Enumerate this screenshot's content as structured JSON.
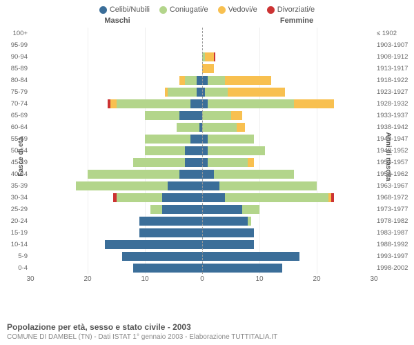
{
  "legend": [
    {
      "label": "Celibi/Nubili",
      "color": "#3b6e99"
    },
    {
      "label": "Coniugati/e",
      "color": "#b3d58b"
    },
    {
      "label": "Vedovi/e",
      "color": "#f8c050"
    },
    {
      "label": "Divorziati/e",
      "color": "#cc3333"
    }
  ],
  "header_left": "Maschi",
  "header_right": "Femmine",
  "yaxis_left": "Fasce di età",
  "yaxis_right": "Anni di nascita",
  "x_max": 30,
  "x_ticks": [
    30,
    20,
    10,
    0,
    10,
    20,
    30
  ],
  "footer_title": "Popolazione per età, sesso e stato civile - 2003",
  "footer_sub": "COMUNE DI DAMBEL (TN) - Dati ISTAT 1° gennaio 2003 - Elaborazione TUTTITALIA.IT",
  "rows": [
    {
      "age": "100+",
      "birth": "≤ 1902",
      "m": [
        0,
        0,
        0,
        0
      ],
      "f": [
        0,
        0,
        0,
        0
      ]
    },
    {
      "age": "95-99",
      "birth": "1903-1907",
      "m": [
        0,
        0,
        0,
        0
      ],
      "f": [
        0,
        0,
        0,
        0
      ]
    },
    {
      "age": "90-94",
      "birth": "1908-1912",
      "m": [
        0,
        0,
        0,
        0
      ],
      "f": [
        0,
        0.5,
        1.5,
        0.3
      ]
    },
    {
      "age": "85-89",
      "birth": "1913-1917",
      "m": [
        0,
        0,
        0,
        0
      ],
      "f": [
        0,
        0,
        2,
        0
      ]
    },
    {
      "age": "80-84",
      "birth": "1918-1922",
      "m": [
        1,
        2,
        1,
        0
      ],
      "f": [
        1,
        3,
        8,
        0
      ]
    },
    {
      "age": "75-79",
      "birth": "1923-1927",
      "m": [
        1,
        5,
        0.5,
        0
      ],
      "f": [
        0.5,
        4,
        10,
        0
      ]
    },
    {
      "age": "70-74",
      "birth": "1928-1932",
      "m": [
        2,
        13,
        1,
        0.5
      ],
      "f": [
        1,
        15,
        7,
        0
      ]
    },
    {
      "age": "65-69",
      "birth": "1933-1937",
      "m": [
        4,
        6,
        0,
        0
      ],
      "f": [
        0,
        5,
        2,
        0
      ]
    },
    {
      "age": "60-64",
      "birth": "1938-1942",
      "m": [
        0.5,
        4,
        0,
        0
      ],
      "f": [
        0,
        6,
        1.5,
        0
      ]
    },
    {
      "age": "55-59",
      "birth": "1943-1947",
      "m": [
        2,
        8,
        0,
        0
      ],
      "f": [
        1,
        8,
        0,
        0
      ]
    },
    {
      "age": "50-54",
      "birth": "1948-1952",
      "m": [
        3,
        7,
        0,
        0
      ],
      "f": [
        1,
        10,
        0,
        0
      ]
    },
    {
      "age": "45-49",
      "birth": "1953-1957",
      "m": [
        3,
        9,
        0,
        0
      ],
      "f": [
        1,
        7,
        1,
        0
      ]
    },
    {
      "age": "40-44",
      "birth": "1958-1962",
      "m": [
        4,
        16,
        0,
        0
      ],
      "f": [
        2,
        14,
        0,
        0
      ]
    },
    {
      "age": "35-39",
      "birth": "1963-1967",
      "m": [
        6,
        16,
        0,
        0
      ],
      "f": [
        3,
        17,
        0,
        0
      ]
    },
    {
      "age": "30-34",
      "birth": "1968-1972",
      "m": [
        7,
        8,
        0,
        0.5
      ],
      "f": [
        4,
        18,
        0.5,
        0.5
      ]
    },
    {
      "age": "25-29",
      "birth": "1973-1977",
      "m": [
        7,
        2,
        0,
        0
      ],
      "f": [
        7,
        3,
        0,
        0
      ]
    },
    {
      "age": "20-24",
      "birth": "1978-1982",
      "m": [
        11,
        0,
        0,
        0
      ],
      "f": [
        8,
        0.5,
        0,
        0
      ]
    },
    {
      "age": "15-19",
      "birth": "1983-1987",
      "m": [
        11,
        0,
        0,
        0
      ],
      "f": [
        9,
        0,
        0,
        0
      ]
    },
    {
      "age": "10-14",
      "birth": "1988-1992",
      "m": [
        17,
        0,
        0,
        0
      ],
      "f": [
        9,
        0,
        0,
        0
      ]
    },
    {
      "age": "5-9",
      "birth": "1993-1997",
      "m": [
        14,
        0,
        0,
        0
      ],
      "f": [
        17,
        0,
        0,
        0
      ]
    },
    {
      "age": "0-4",
      "birth": "1998-2002",
      "m": [
        12,
        0,
        0,
        0
      ],
      "f": [
        14,
        0,
        0,
        0
      ]
    }
  ]
}
